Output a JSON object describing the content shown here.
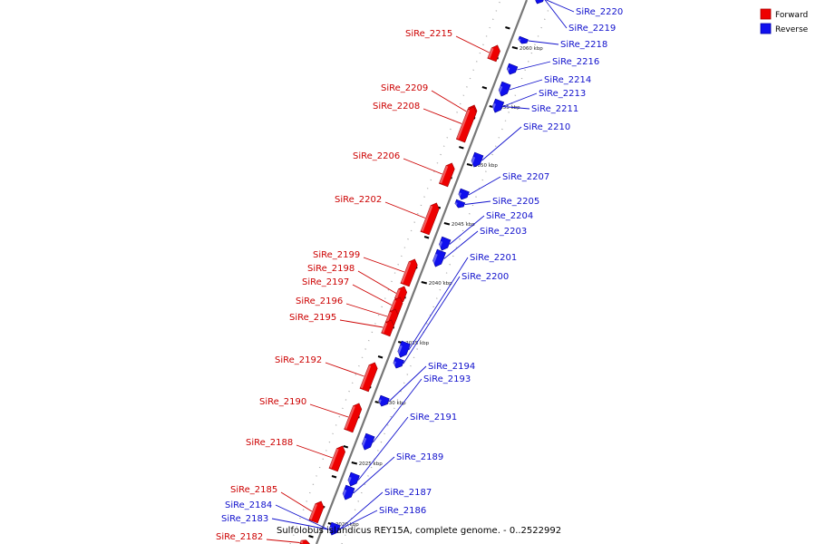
{
  "legend": {
    "forward_label": "Forward",
    "reverse_label": "Reverse",
    "forward_color": "#ee0000",
    "reverse_color": "#1010ee"
  },
  "caption": "Sulfolobus islandicus REY15A, complete genome. - 0..2522992",
  "scale_labels": [
    "2020 kbp",
    "2025 kbp",
    "2030 kbp",
    "2035 kbp",
    "2040 kbp",
    "2045 kbp",
    "2050 kbp",
    "2055 kbp",
    "2060 kbp"
  ],
  "forward_genes": [
    "SiRe_2215",
    "SiRe_2209",
    "SiRe_2208",
    "SiRe_2206",
    "SiRe_2202",
    "SiRe_2199",
    "SiRe_2198",
    "SiRe_2197",
    "SiRe_2196",
    "SiRe_2195",
    "SiRe_2192",
    "SiRe_2190",
    "SiRe_2188",
    "SiRe_2185",
    "SiRe_2182"
  ],
  "reverse_genes": [
    "SiRe_2220",
    "SiRe_2219",
    "SiRe_2218",
    "SiRe_2216",
    "SiRe_2214",
    "SiRe_2213",
    "SiRe_2211",
    "SiRe_2210",
    "SiRe_2207",
    "SiRe_2205",
    "SiRe_2204",
    "SiRe_2203",
    "SiRe_2201",
    "SiRe_2200",
    "SiRe_2194",
    "SiRe_2193",
    "SiRe_2191",
    "SiRe_2189",
    "SiRe_2187",
    "SiRe_2186",
    "SiRe_2184",
    "SiRe_2183"
  ]
}
